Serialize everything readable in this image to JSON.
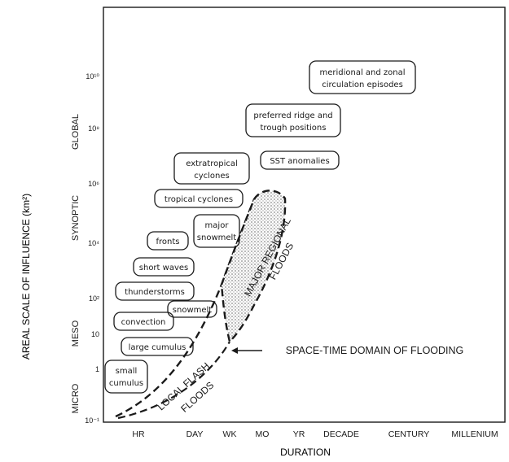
{
  "y_group_labels": [
    "GLOBAL",
    "SYNOPTIC",
    "MESO",
    "MICRO"
  ],
  "y_axis_label": "AREAL SCALE OF INFLUENCE (km²)",
  "y_ticks": [
    "10¹⁰",
    "10⁸",
    "10⁶",
    "10⁴",
    "10²",
    "10",
    "1",
    "10⁻¹"
  ],
  "x_ticks": [
    "HR",
    "DAY",
    "WK",
    "MO",
    "YR",
    "DECADE",
    "CENTURY",
    "MILLENIUM"
  ],
  "x_axis_label": "DURATION",
  "phenomena": [
    {
      "key": "meridional",
      "lines": [
        "meridional and zonal",
        "circulation episodes"
      ]
    },
    {
      "key": "ridge",
      "lines": [
        "preferred ridge and",
        "trough positions"
      ]
    },
    {
      "key": "sst",
      "lines": [
        "SST anomalies"
      ]
    },
    {
      "key": "extratropical",
      "lines": [
        "extratropical",
        "cyclones"
      ]
    },
    {
      "key": "tropical",
      "lines": [
        "tropical cyclones"
      ]
    },
    {
      "key": "major-snowmelt",
      "lines": [
        "major",
        "snowmelt"
      ]
    },
    {
      "key": "fronts",
      "lines": [
        "fronts"
      ]
    },
    {
      "key": "short-waves",
      "lines": [
        "short waves"
      ]
    },
    {
      "key": "thunderstorms",
      "lines": [
        "thunderstorms"
      ]
    },
    {
      "key": "snowmelt",
      "lines": [
        "snowmelt"
      ]
    },
    {
      "key": "convection",
      "lines": [
        "convection"
      ]
    },
    {
      "key": "large-cumulus",
      "lines": [
        "large cumulus"
      ]
    },
    {
      "key": "small-cumulus",
      "lines": [
        "small",
        "cumulus"
      ]
    }
  ],
  "regions": {
    "local": [
      "LOCAL FLASH",
      "FLOODS"
    ],
    "regional": [
      "MAJOR REGIONAL",
      "FLOODS"
    ],
    "domain_label": "SPACE-TIME DOMAIN OF FLOODING"
  },
  "colors": {
    "ink": "#1a1a1a",
    "shade": "#bdbdbd"
  }
}
